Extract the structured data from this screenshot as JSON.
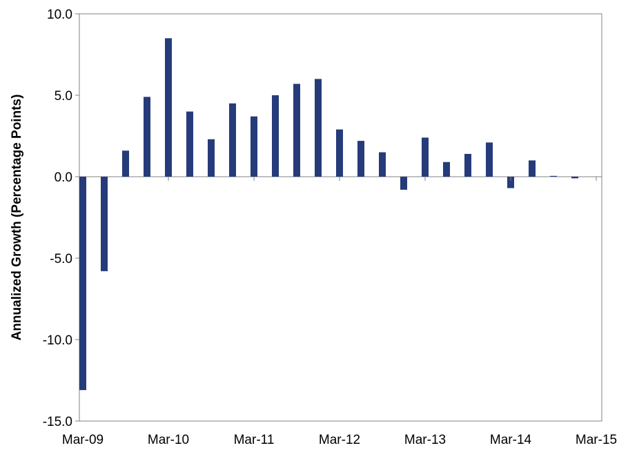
{
  "chart_data": {
    "type": "bar",
    "title": "",
    "xlabel": "",
    "ylabel": "Annualized Growth (Percentage Points)",
    "ylim": [
      -15,
      10
    ],
    "yticks": [
      "10.0",
      "5.0",
      "0.0",
      "-5.0",
      "-10.0",
      "-15.0"
    ],
    "ytick_values": [
      10,
      5,
      0,
      -5,
      -10,
      -15
    ],
    "x_tick_labels": [
      "Mar-09",
      "Mar-10",
      "Mar-11",
      "Mar-12",
      "Mar-13",
      "Mar-14",
      "Mar-15"
    ],
    "categories": [
      "Mar-09",
      "Jun-09",
      "Sep-09",
      "Dec-09",
      "Mar-10",
      "Jun-10",
      "Sep-10",
      "Dec-10",
      "Mar-11",
      "Jun-11",
      "Sep-11",
      "Dec-11",
      "Mar-12",
      "Jun-12",
      "Sep-12",
      "Dec-12",
      "Mar-13",
      "Jun-13",
      "Sep-13",
      "Dec-13",
      "Mar-14",
      "Jun-14",
      "Sep-14",
      "Dec-14"
    ],
    "values": [
      -13.1,
      -5.8,
      1.6,
      4.9,
      8.5,
      4.0,
      2.3,
      4.5,
      3.7,
      5.0,
      5.7,
      6.0,
      2.9,
      2.2,
      1.5,
      -0.8,
      2.4,
      0.9,
      1.4,
      2.1,
      -0.7,
      1.0,
      0.05,
      -0.1
    ],
    "bar_color": "#253B7A",
    "grid": false,
    "legend": "none"
  }
}
